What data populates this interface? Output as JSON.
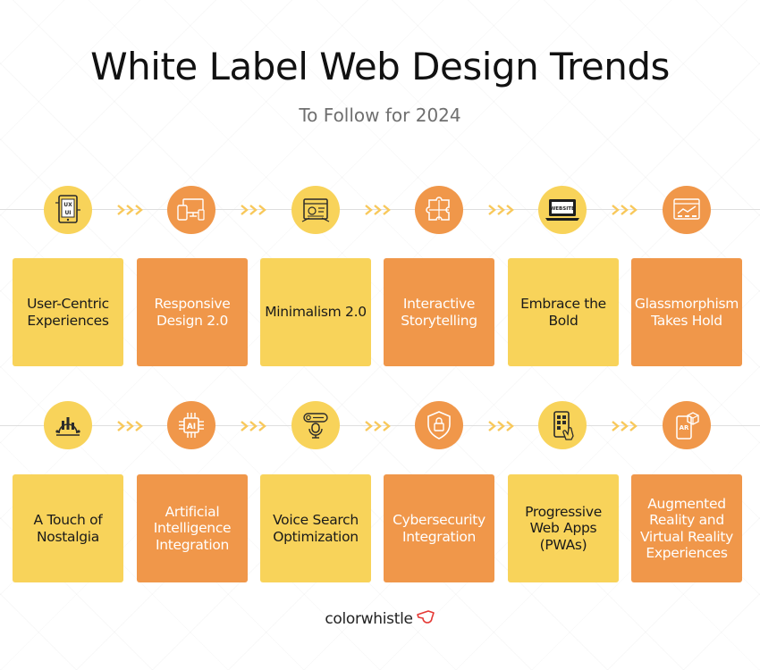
{
  "header": {
    "title": "White Label Web Design Trends",
    "subtitle": "To Follow for 2024"
  },
  "colors": {
    "yellow": "#f8d35a",
    "orange": "#f0974a",
    "icon_dark": "#2b2b2b"
  },
  "row1": [
    {
      "label": "User-Centric Experiences",
      "icon": "ux-tablet-icon",
      "color": "yellow"
    },
    {
      "label": "Responsive Design 2.0",
      "icon": "responsive-devices-icon",
      "color": "orange"
    },
    {
      "label": "Minimalism 2.0",
      "icon": "minimal-browser-icon",
      "color": "yellow"
    },
    {
      "label": "Interactive Storytelling",
      "icon": "puzzle-icon",
      "color": "orange"
    },
    {
      "label": "Embrace the Bold",
      "icon": "laptop-website-icon",
      "color": "yellow"
    },
    {
      "label": "Glassmorphism Takes Hold",
      "icon": "browser-chart-icon",
      "color": "orange"
    }
  ],
  "row1_icon_texts": {
    "ux": "UX",
    "ui": "UI",
    "website": "WEBSITE"
  },
  "row2": [
    {
      "label": "A Touch of Nostalgia",
      "icon": "gear-chart-icon",
      "color": "yellow"
    },
    {
      "label": "Artificial Intelligence Integration",
      "icon": "ai-chip-icon",
      "color": "orange"
    },
    {
      "label": "Voice Search Optimization",
      "icon": "microphone-search-icon",
      "color": "yellow"
    },
    {
      "label": "Cybersecurity Integration",
      "icon": "shield-lock-icon",
      "color": "orange"
    },
    {
      "label": "Progressive Web Apps (PWAs)",
      "icon": "phone-touch-icon",
      "color": "yellow"
    },
    {
      "label": "Augmented Reality and Virtual Reality Experiences",
      "icon": "ar-phone-icon",
      "color": "orange"
    }
  ],
  "row2_icon_texts": {
    "ai": "AI",
    "ar": "AR"
  },
  "brand": {
    "name": "colorwhistle",
    "logo_icon": "whistle-logo-icon"
  }
}
